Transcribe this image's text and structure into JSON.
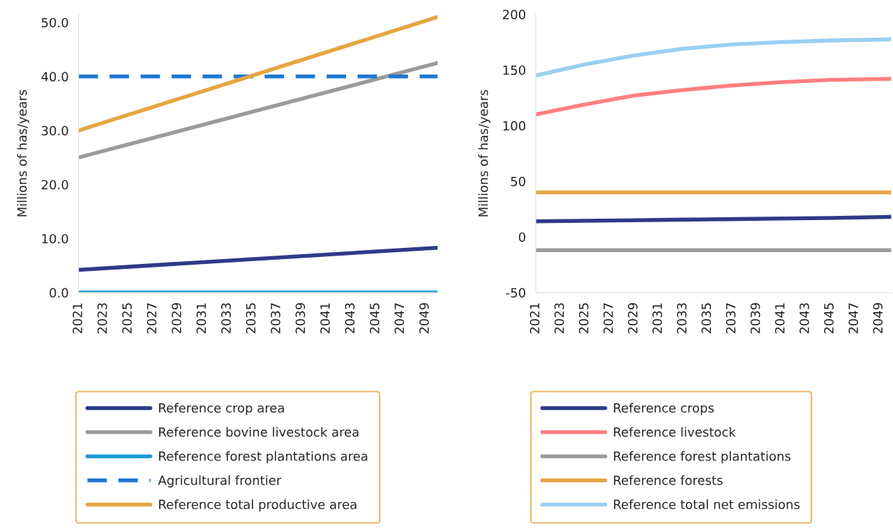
{
  "chart_data": [
    {
      "type": "line",
      "ylabel": "Millions of has/years",
      "x": [
        2021,
        2050
      ],
      "xlim": [
        2021,
        2050
      ],
      "xticks": [
        2021,
        2023,
        2025,
        2027,
        2029,
        2031,
        2033,
        2035,
        2037,
        2039,
        2041,
        2043,
        2045,
        2047,
        2049
      ],
      "ylim": [
        0,
        51.5
      ],
      "yticks": [
        {
          "value": 0,
          "label": "0.0"
        },
        {
          "value": 10,
          "label": "10.0"
        },
        {
          "value": 20,
          "label": "20.0"
        },
        {
          "value": 30,
          "label": "30.0"
        },
        {
          "value": 40,
          "label": "40.0"
        },
        {
          "value": 50,
          "label": "50.0"
        }
      ],
      "grid": false,
      "legend": "bottom",
      "series": [
        {
          "name": "Reference crop area",
          "color": "#2e3a87",
          "values": [
            4.2,
            8.3
          ]
        },
        {
          "name": "Reference bovine livestock area",
          "color": "#9b9b9b",
          "values": [
            25.0,
            42.5
          ]
        },
        {
          "name": "Reference forest plantations area",
          "color": "#1a9ad6",
          "values": [
            0.0,
            0.0
          ]
        },
        {
          "name": "Agricultural frontier",
          "color": "#1f78d1",
          "line_style": "dashed",
          "values": [
            40.0,
            40.0
          ]
        },
        {
          "name": "Reference total productive area",
          "color": "#e5a642",
          "values": [
            30.0,
            51.0
          ]
        }
      ]
    },
    {
      "type": "line",
      "ylabel": "Millions of has/years",
      "x": [
        2021,
        2025,
        2029,
        2033,
        2037,
        2041,
        2045,
        2050
      ],
      "xlim": [
        2021,
        2050
      ],
      "xticks": [
        2021,
        2023,
        2025,
        2027,
        2029,
        2031,
        2033,
        2035,
        2037,
        2039,
        2041,
        2043,
        2045,
        2047,
        2049
      ],
      "ylim": [
        -50,
        200
      ],
      "yticks": [
        -50,
        0,
        50,
        100,
        150,
        200
      ],
      "grid": false,
      "legend": "bottom",
      "series": [
        {
          "name": "Reference crops",
          "color": "#2e3a87",
          "values": [
            14,
            14.5,
            15,
            15.5,
            16,
            16.5,
            17,
            18
          ]
        },
        {
          "name": "Reference livestock",
          "color": "#ff7f7f",
          "values": [
            110,
            119,
            127,
            132,
            136,
            139,
            141,
            142
          ]
        },
        {
          "name": "Reference forest plantations",
          "color": "#9b9b9b",
          "values": [
            -12,
            -12,
            -12,
            -12,
            -12,
            -12,
            -12,
            -12
          ]
        },
        {
          "name": "Reference forests",
          "color": "#e5a642",
          "values": [
            40,
            40,
            40,
            40,
            40,
            40,
            40,
            40
          ]
        },
        {
          "name": "Reference total net emissions",
          "color": "#99cff2",
          "values": [
            145,
            155,
            163,
            169,
            173,
            175,
            176.5,
            177.5
          ]
        }
      ]
    }
  ]
}
